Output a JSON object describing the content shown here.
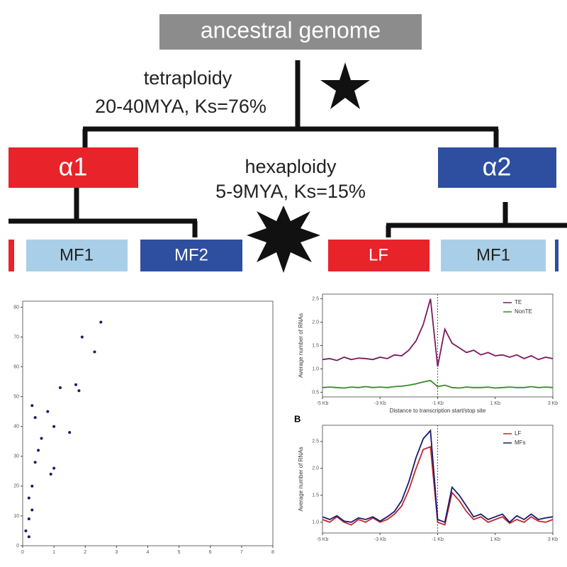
{
  "diagram": {
    "root": "ancestral genome",
    "event1": {
      "name": "tetraploidy",
      "detail": "20-40MYA, Ks=76%"
    },
    "event2": {
      "name": "hexaploidy",
      "detail": "5-9MYA, Ks=15%"
    },
    "subgenomes": [
      "α1",
      "α2"
    ],
    "fragments": [
      "MF1",
      "MF2",
      "LF",
      "MF1"
    ]
  },
  "chart_data": [
    {
      "type": "scatter",
      "color": "#1a1a6e",
      "x": [
        2.5,
        1.9,
        2.3,
        1.2,
        1.7,
        1.8,
        0.3,
        0.8,
        0.4,
        1.0,
        1.5,
        0.6,
        0.5,
        0.4,
        1.0,
        0.9,
        0.3,
        0.2,
        0.3,
        0.2,
        0.1,
        0.2
      ],
      "values": [
        75,
        70,
        65,
        53,
        54,
        52,
        47,
        45,
        43,
        40,
        38,
        36,
        32,
        28,
        26,
        24,
        20,
        16,
        12,
        9,
        5,
        3
      ],
      "xlim": [
        0,
        8
      ],
      "xticks": [
        0,
        1,
        2,
        3,
        4,
        5,
        6,
        7,
        8
      ],
      "ylim": [
        0,
        82
      ],
      "yticks": [
        0,
        10,
        20,
        30,
        40,
        50,
        60,
        70,
        80
      ]
    },
    {
      "type": "line",
      "y_label": "Average number of RNAs",
      "x_label": "Distance to transcription start/stop site",
      "x": [
        -5,
        -4.75,
        -4.5,
        -4.25,
        -4,
        -3.75,
        -3.5,
        -3.25,
        -3,
        -2.75,
        -2.5,
        -2.25,
        -2,
        -1.75,
        -1.5,
        -1.25,
        -1,
        -0.75,
        -0.5,
        -0.25,
        0,
        0.25,
        0.5,
        0.75,
        1,
        1.25,
        1.5,
        1.75,
        2,
        2.25,
        2.5,
        2.75,
        3
      ],
      "series": [
        {
          "name": "TE",
          "color": "#7a1a5e",
          "values": [
            1.2,
            1.22,
            1.18,
            1.25,
            1.2,
            1.23,
            1.22,
            1.2,
            1.25,
            1.22,
            1.3,
            1.28,
            1.4,
            1.6,
            1.95,
            2.5,
            1.05,
            1.85,
            1.55,
            1.45,
            1.35,
            1.4,
            1.3,
            1.35,
            1.28,
            1.3,
            1.25,
            1.3,
            1.22,
            1.28,
            1.2,
            1.25,
            1.22
          ]
        },
        {
          "name": "NonTE",
          "color": "#3a8a2a",
          "values": [
            0.6,
            0.61,
            0.6,
            0.59,
            0.61,
            0.6,
            0.62,
            0.6,
            0.61,
            0.6,
            0.62,
            0.63,
            0.65,
            0.68,
            0.72,
            0.75,
            0.62,
            0.65,
            0.6,
            0.59,
            0.61,
            0.6,
            0.6,
            0.61,
            0.59,
            0.6,
            0.61,
            0.6,
            0.6,
            0.62,
            0.6,
            0.61,
            0.6
          ]
        }
      ],
      "xlim": [
        -5,
        3
      ],
      "xticks": [
        {
          "value": -5,
          "label": "-5 Kb"
        },
        {
          "value": -3,
          "label": "-3 Kb"
        },
        {
          "value": -1,
          "label": "-1 Kb"
        },
        {
          "value": 1,
          "label": "1 Kb"
        },
        {
          "value": 3,
          "label": "3 Kb"
        }
      ],
      "ylim": [
        0.4,
        2.6
      ],
      "yticks": [
        0.5,
        {
          "value": 1,
          "label": "1.0"
        },
        1.5,
        {
          "value": 2,
          "label": "2.0"
        },
        2.5
      ]
    },
    {
      "type": "line",
      "panel_label": "B",
      "y_label": "Average number of RNAs",
      "x": [
        -5,
        -4.75,
        -4.5,
        -4.25,
        -4,
        -3.75,
        -3.5,
        -3.25,
        -3,
        -2.75,
        -2.5,
        -2.25,
        -2,
        -1.75,
        -1.5,
        -1.25,
        -1,
        -0.75,
        -0.5,
        -0.25,
        0,
        0.25,
        0.5,
        0.75,
        1,
        1.25,
        1.5,
        1.75,
        2,
        2.25,
        2.5,
        2.75,
        3
      ],
      "series": [
        {
          "name": "LF",
          "color": "#c0282d",
          "values": [
            1.05,
            1.0,
            1.1,
            1.0,
            0.95,
            1.05,
            1.0,
            1.08,
            1.0,
            1.05,
            1.15,
            1.3,
            1.6,
            2.0,
            2.35,
            2.4,
            1.0,
            0.95,
            1.55,
            1.4,
            1.2,
            1.05,
            1.1,
            1.0,
            1.05,
            1.1,
            0.98,
            1.05,
            1.0,
            1.1,
            1.02,
            1.0,
            1.05
          ]
        },
        {
          "name": "MFs",
          "color": "#1a1a70",
          "values": [
            1.1,
            1.05,
            1.12,
            1.02,
            1.0,
            1.08,
            1.05,
            1.1,
            1.02,
            1.1,
            1.2,
            1.4,
            1.75,
            2.2,
            2.55,
            2.7,
            1.05,
            1.0,
            1.65,
            1.5,
            1.3,
            1.1,
            1.15,
            1.05,
            1.1,
            1.15,
            1.0,
            1.12,
            1.05,
            1.15,
            1.05,
            1.08,
            1.1
          ]
        }
      ],
      "xlim": [
        -5,
        3
      ],
      "xticks": [
        {
          "value": -5,
          "label": "-5 Kb"
        },
        {
          "value": -3,
          "label": "-3 Kb"
        },
        {
          "value": -1,
          "label": "-1 Kb"
        },
        {
          "value": 1,
          "label": "1 Kb"
        },
        {
          "value": 3,
          "label": "3 Kb"
        }
      ],
      "ylim": [
        0.8,
        2.8
      ],
      "yticks": [
        {
          "value": 1,
          "label": "1.0"
        },
        1.5,
        {
          "value": 2,
          "label": "2.0"
        },
        2.5
      ]
    }
  ]
}
